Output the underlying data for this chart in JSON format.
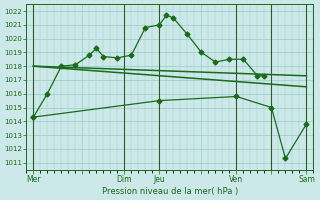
{
  "background_color": "#cce8e8",
  "grid_color": "#99cccc",
  "line_color": "#1a6b1a",
  "text_color": "#1a6b1a",
  "xlabel_text": "Pression niveau de la mer( hPa )",
  "ylim": [
    1010.5,
    1022.5
  ],
  "yticks": [
    1011,
    1012,
    1013,
    1014,
    1015,
    1016,
    1017,
    1018,
    1019,
    1020,
    1021,
    1022
  ],
  "x_day_labels": [
    "Mer",
    "",
    "Dim",
    "Jeu",
    "",
    "Ven",
    "",
    "Sam"
  ],
  "x_day_positions": [
    0.5,
    4.0,
    7.0,
    9.5,
    12.5,
    15.0,
    17.5,
    20.0
  ],
  "x_vlines": [
    0.5,
    7.0,
    9.5,
    15.0,
    17.5,
    20.0
  ],
  "xlim": [
    0.0,
    20.5
  ],
  "series1_x": [
    0.5,
    1.5,
    2.5,
    3.5,
    4.5,
    5.0,
    5.5,
    6.5,
    7.5,
    8.5,
    9.5,
    10.0,
    10.5,
    11.5,
    12.5,
    13.5,
    14.5,
    15.5,
    16.5,
    17.0
  ],
  "series1_y": [
    1014.3,
    1016.0,
    1018.0,
    1018.1,
    1018.8,
    1019.3,
    1018.7,
    1018.6,
    1018.8,
    1020.8,
    1021.0,
    1021.7,
    1021.5,
    1020.3,
    1019.0,
    1018.3,
    1018.5,
    1018.5,
    1017.3,
    1017.3
  ],
  "series2_x": [
    0.5,
    20.0
  ],
  "series2_y": [
    1018.0,
    1017.3
  ],
  "series3_x": [
    0.5,
    20.0
  ],
  "series3_y": [
    1018.0,
    1016.5
  ],
  "series4_x": [
    0.5,
    9.5,
    15.0,
    17.5,
    18.5,
    20.0
  ],
  "series4_y": [
    1014.3,
    1015.5,
    1015.8,
    1015.0,
    1011.3,
    1013.8
  ]
}
